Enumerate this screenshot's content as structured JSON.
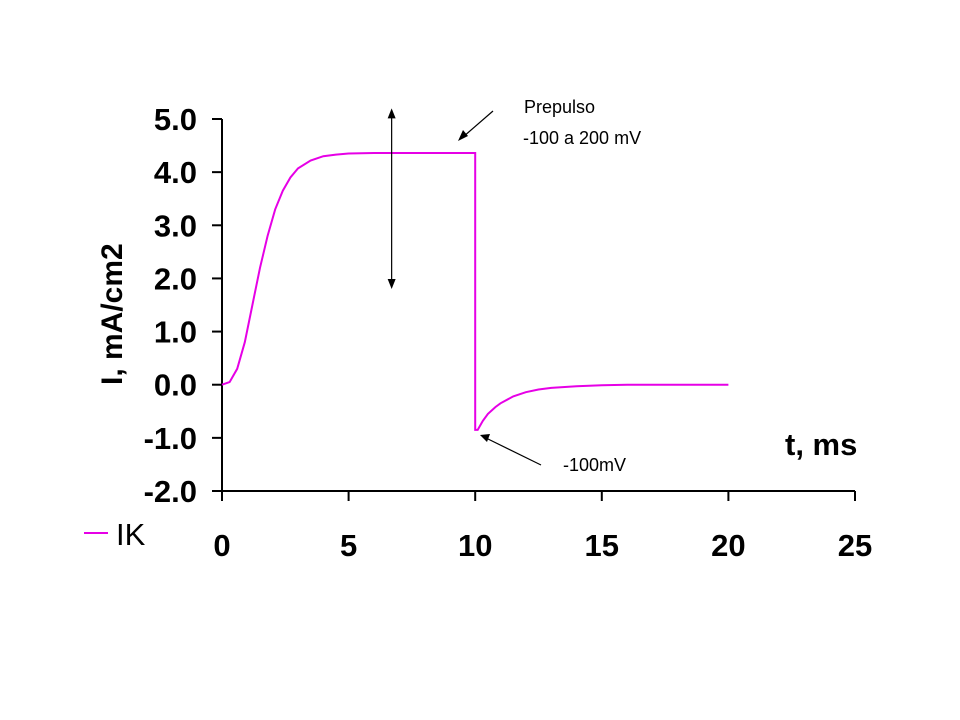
{
  "chart_data": {
    "type": "line",
    "title": "",
    "xlabel": "t, ms",
    "ylabel": "I, mA/cm2",
    "xlim": [
      0,
      25
    ],
    "ylim": [
      -2.0,
      5.0
    ],
    "x_ticks": [
      "0",
      "5",
      "10",
      "15",
      "20",
      "25"
    ],
    "y_ticks": [
      "5.0",
      "4.0",
      "3.0",
      "2.0",
      "1.0",
      "0.0",
      "-1.0",
      "-2.0"
    ],
    "grid": false,
    "legend_position": "bottom-left",
    "colors": {
      "series": "#e600e6",
      "axis": "#000000"
    },
    "series": [
      {
        "name": "IK",
        "x": [
          0,
          0.3,
          0.6,
          0.9,
          1.2,
          1.5,
          1.8,
          2.1,
          2.4,
          2.7,
          3.0,
          3.5,
          4.0,
          4.5,
          5.0,
          6.0,
          7.0,
          8.0,
          9.0,
          10.0,
          10.0,
          10.1,
          10.3,
          10.5,
          10.8,
          11.0,
          11.5,
          12.0,
          12.5,
          13.0,
          14.0,
          15.0,
          16.0,
          17.0,
          18.0,
          19.0,
          20.0
        ],
        "values": [
          0.0,
          0.05,
          0.3,
          0.8,
          1.5,
          2.2,
          2.8,
          3.3,
          3.65,
          3.9,
          4.07,
          4.22,
          4.3,
          4.33,
          4.35,
          4.36,
          4.36,
          4.36,
          4.36,
          4.36,
          -0.85,
          -0.85,
          -0.68,
          -0.55,
          -0.42,
          -0.35,
          -0.22,
          -0.14,
          -0.09,
          -0.06,
          -0.03,
          -0.01,
          0.0,
          0.0,
          0.0,
          0.0,
          0.0
        ]
      }
    ],
    "annotations": [
      {
        "lines": [
          "Prepulso",
          " -100 a 200 mV"
        ]
      },
      {
        "lines": [
          "-100mV"
        ]
      }
    ],
    "range_marker": {
      "x": 6.7,
      "y_from": 1.8,
      "y_to": 5.2
    }
  }
}
